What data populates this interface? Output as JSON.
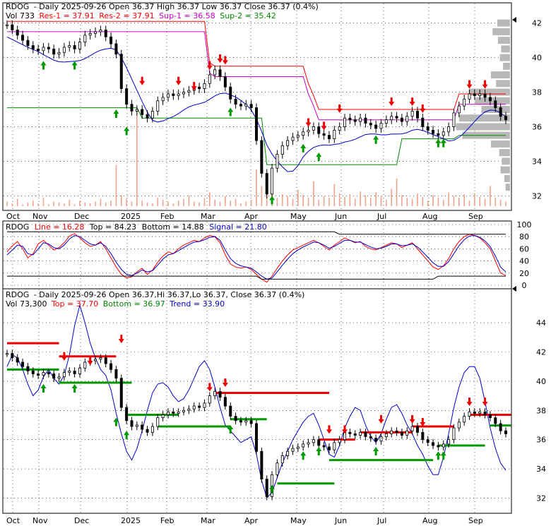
{
  "chart_data": [
    {
      "type": "candlestick",
      "header": {
        "ticker": "RDOG",
        "info": "- Daily 2025-09-26 Open 36.37  High 36.37  Low 36.37  Close 36.37 (0.4%)",
        "vol": "Vol 733",
        "res1": "Res-1 = 37.91",
        "res2": "Res-2 = 37.91",
        "sup1": "Sup-1 = 36.58",
        "sup2": "Sup-2 = 35.42"
      },
      "months": [
        "Oct",
        "Nov",
        "Dec",
        "2025",
        "Feb",
        "Mar",
        "Apr",
        "May",
        "Jun",
        "Jul",
        "Aug",
        "Sep"
      ],
      "y_ticks": [
        "42",
        "40",
        "38",
        "36",
        "34",
        "32"
      ],
      "ylim": [
        31.4,
        42.6
      ],
      "close": [
        41.9,
        41.6,
        41.3,
        41.0,
        40.7,
        40.5,
        40.4,
        40.6,
        40.5,
        40.2,
        40.3,
        40.6,
        40.7,
        40.5,
        40.9,
        41.3,
        41.4,
        41.5,
        41.6,
        41.2,
        40.8,
        40.2,
        38.2,
        37.3,
        36.9,
        37.0,
        36.7,
        36.5,
        36.9,
        37.5,
        37.7,
        37.9,
        37.8,
        37.9,
        38.0,
        38.1,
        38.3,
        38.2,
        38.5,
        39.0,
        39.3,
        38.9,
        38.3,
        37.6,
        37.3,
        37.2,
        37.3,
        37.1,
        35.2,
        33.3,
        32.1,
        33.6,
        34.4,
        34.9,
        35.2,
        35.4,
        35.5,
        35.7,
        35.8,
        36.0,
        35.6,
        35.5,
        35.3,
        35.8,
        36.0,
        36.5,
        36.4,
        36.3,
        36.5,
        36.2,
        36.1,
        35.9,
        36.2,
        36.4,
        36.6,
        36.5,
        36.3,
        36.6,
        36.9,
        36.5,
        36.0,
        35.8,
        35.6,
        35.5,
        35.7,
        36.0,
        36.8,
        37.2,
        37.6,
        37.9,
        37.8,
        37.9,
        37.7,
        37.5,
        37.1,
        36.6,
        36.4
      ],
      "res_line": [
        42.1,
        42.1,
        42.1,
        42.1,
        42.1,
        42.1,
        42.1,
        42.1,
        42.1,
        42.1,
        42.1,
        42.1,
        42.1,
        42.1,
        42.1,
        42.1,
        42.1,
        42.1,
        42.1,
        42.1,
        42.1,
        42.1,
        42.1,
        42.1,
        42.1,
        42.1,
        42.1,
        42.1,
        42.1,
        42.1,
        42.1,
        42.1,
        42.1,
        42.1,
        42.1,
        42.1,
        42.1,
        42.1,
        42.1,
        39.7,
        39.5,
        39.5,
        39.5,
        39.5,
        39.5,
        39.5,
        39.5,
        39.5,
        39.5,
        39.5,
        39.5,
        39.5,
        39.5,
        39.5,
        39.5,
        39.5,
        39.5,
        39.5,
        38.5,
        37.8,
        37.0,
        37.0,
        37.0,
        37.0,
        37.0,
        37.0,
        37.0,
        37.0,
        37.0,
        37.0,
        37.0,
        37.0,
        37.0,
        37.0,
        37.0,
        37.0,
        37.0,
        37.0,
        37.0,
        37.0,
        37.0,
        37.0,
        37.0,
        37.0,
        37.0,
        37.0,
        37.0,
        37.9,
        37.9,
        37.9,
        37.9,
        37.9,
        37.9,
        37.9,
        37.9,
        37.9,
        37.9
      ],
      "sup_line": [
        37.1,
        37.1,
        37.1,
        37.1,
        37.1,
        37.1,
        37.1,
        37.1,
        37.1,
        37.1,
        37.1,
        37.1,
        37.1,
        37.1,
        37.1,
        37.1,
        37.1,
        37.1,
        37.1,
        37.1,
        37.1,
        37.1,
        37.1,
        37.1,
        37.1,
        37.1,
        36.5,
        36.5,
        36.5,
        36.5,
        36.5,
        36.5,
        36.5,
        36.5,
        36.5,
        36.5,
        36.5,
        36.5,
        36.5,
        36.5,
        36.5,
        36.5,
        36.5,
        36.5,
        36.5,
        36.5,
        36.5,
        36.5,
        36.5,
        36.5,
        33.8,
        33.8,
        33.8,
        33.8,
        33.8,
        33.8,
        33.8,
        33.8,
        33.8,
        33.8,
        33.8,
        33.8,
        33.8,
        33.8,
        33.8,
        33.8,
        33.8,
        33.8,
        33.8,
        33.8,
        33.8,
        33.8,
        33.8,
        33.8,
        33.8,
        33.8,
        35.3,
        35.3,
        35.3,
        35.3,
        35.3,
        35.3,
        35.3,
        35.3,
        35.3,
        35.3,
        35.3,
        35.5,
        35.5,
        35.5,
        35.5,
        35.5,
        35.5,
        35.5,
        35.5,
        35.5,
        35.5
      ],
      "volume": [
        5,
        3,
        8,
        2,
        4,
        6,
        3,
        9,
        2,
        5,
        4,
        3,
        7,
        2,
        6,
        4,
        3,
        5,
        8,
        4,
        6,
        45,
        12,
        8,
        5,
        100,
        6,
        4,
        3,
        9,
        7,
        5,
        3,
        6,
        8,
        12,
        5,
        4,
        9,
        15,
        7,
        5,
        11,
        6,
        8,
        3,
        5,
        7,
        40,
        22,
        30,
        15,
        9,
        13,
        11,
        8,
        18,
        12,
        9,
        27,
        7,
        11,
        9,
        24,
        14,
        10,
        13,
        8,
        16,
        12,
        9,
        15,
        11,
        7,
        19,
        30,
        12,
        9,
        8,
        14,
        10,
        6,
        12,
        9,
        7,
        15,
        11,
        9,
        13,
        6,
        14,
        10,
        8,
        22,
        9,
        7,
        5
      ],
      "down_arrows": [
        [
          26,
          38.4
        ],
        [
          33,
          38.4
        ],
        [
          36,
          38.1
        ],
        [
          39,
          39.3
        ],
        [
          41,
          39.7
        ],
        [
          42,
          39.6
        ],
        [
          58,
          36.0
        ],
        [
          61,
          35.8
        ],
        [
          64,
          36.8
        ],
        [
          74,
          37.2
        ],
        [
          78,
          37.2
        ],
        [
          80,
          36.8
        ],
        [
          89,
          38.2
        ],
        [
          92,
          38.2
        ]
      ],
      "up_arrows": [
        [
          7,
          39.8
        ],
        [
          13,
          39.8
        ],
        [
          21,
          37.0
        ],
        [
          23,
          36.0
        ],
        [
          43,
          37.1
        ],
        [
          51,
          32.0
        ],
        [
          57,
          35.0
        ],
        [
          60,
          34.5
        ],
        [
          71,
          35.5
        ],
        [
          83,
          35.3
        ],
        [
          84,
          35.3
        ]
      ],
      "volume_profile": "right"
    },
    {
      "type": "line",
      "header": {
        "ticker": "RDOG",
        "line": "Line = 16.28",
        "top": "Top = 84.23",
        "bottom": "Bottom = 14.88",
        "signal": "Signal = 21.80"
      },
      "y_ticks": [
        "100",
        "80",
        "60",
        "40",
        "20",
        "0"
      ],
      "ylim": [
        0,
        100
      ],
      "series": [
        {
          "name": "Line",
          "color": "#ff0000",
          "values": [
            55,
            65,
            72,
            60,
            45,
            52,
            68,
            74,
            66,
            58,
            62,
            70,
            81,
            85,
            78,
            70,
            64,
            66,
            72,
            60,
            45,
            30,
            18,
            12,
            14,
            22,
            28,
            18,
            25,
            38,
            48,
            55,
            52,
            60,
            66,
            70,
            74,
            72,
            78,
            82,
            80,
            70,
            50,
            35,
            30,
            28,
            30,
            26,
            18,
            10,
            5,
            15,
            28,
            40,
            50,
            58,
            62,
            66,
            70,
            74,
            70,
            64,
            58,
            66,
            72,
            78,
            74,
            70,
            72,
            64,
            60,
            58,
            62,
            66,
            70,
            68,
            62,
            66,
            70,
            60,
            50,
            40,
            30,
            26,
            32,
            44,
            60,
            72,
            80,
            84,
            82,
            78,
            70,
            60,
            40,
            20,
            16
          ]
        },
        {
          "name": "Signal",
          "color": "#0000cc",
          "values": [
            50,
            58,
            66,
            64,
            52,
            50,
            60,
            70,
            68,
            62,
            60,
            66,
            76,
            82,
            80,
            74,
            68,
            66,
            70,
            64,
            52,
            38,
            26,
            18,
            16,
            20,
            25,
            22,
            24,
            33,
            43,
            50,
            52,
            57,
            62,
            67,
            71,
            72,
            75,
            79,
            80,
            74,
            58,
            44,
            36,
            32,
            30,
            28,
            22,
            15,
            10,
            12,
            22,
            33,
            43,
            52,
            58,
            63,
            67,
            71,
            70,
            66,
            61,
            64,
            69,
            74,
            74,
            71,
            71,
            67,
            63,
            60,
            61,
            64,
            68,
            68,
            65,
            66,
            68,
            63,
            55,
            46,
            37,
            31,
            31,
            39,
            52,
            65,
            75,
            81,
            82,
            79,
            73,
            64,
            48,
            30,
            22
          ]
        },
        {
          "name": "Top",
          "color": "#000000",
          "values": [
            88,
            88,
            88,
            88,
            88,
            88,
            88,
            88,
            88,
            88,
            88,
            88,
            88,
            88,
            88,
            88,
            88,
            88,
            88,
            88,
            88,
            88,
            88,
            88,
            88,
            88,
            88,
            88,
            88,
            88,
            88,
            88,
            88,
            88,
            88,
            88,
            88,
            88,
            88,
            88,
            88,
            88,
            88,
            88,
            88,
            88,
            88,
            88,
            88,
            88,
            88,
            88,
            88,
            88,
            88,
            88,
            88,
            88,
            88,
            88,
            88,
            88,
            88,
            88,
            84,
            84,
            84,
            84,
            84,
            84,
            84,
            84,
            84,
            84,
            84,
            84,
            84,
            84,
            84,
            84,
            84,
            84,
            84,
            84,
            84,
            84,
            84,
            84,
            84,
            84,
            84,
            84,
            84,
            84,
            84,
            84,
            84
          ]
        },
        {
          "name": "Bottom",
          "color": "#000000",
          "values": [
            15,
            15,
            15,
            15,
            15,
            15,
            15,
            15,
            15,
            15,
            15,
            15,
            15,
            15,
            15,
            15,
            15,
            15,
            15,
            15,
            15,
            15,
            15,
            15,
            15,
            15,
            15,
            15,
            15,
            15,
            15,
            15,
            15,
            15,
            15,
            15,
            15,
            15,
            15,
            15,
            15,
            15,
            15,
            15,
            15,
            15,
            15,
            15,
            15,
            10,
            10,
            10,
            10,
            10,
            10,
            10,
            10,
            10,
            10,
            10,
            10,
            10,
            10,
            10,
            10,
            10,
            10,
            10,
            10,
            10,
            10,
            10,
            10,
            10,
            10,
            10,
            10,
            10,
            10,
            10,
            10,
            10,
            10,
            15,
            15,
            15,
            15,
            15,
            15,
            15,
            15,
            15,
            15,
            15,
            15,
            15,
            15
          ]
        }
      ]
    },
    {
      "type": "line",
      "header": {
        "ticker": "RDOG",
        "info": "- Daily 2025-09-26 Open 36.37,Hi 36.37,Lo 36.37, Close 36.37 (0.4%)",
        "vol": "Vol 73,300",
        "top": "Top = 37.70",
        "bottom": "Bottom = 36.97",
        "trend": "Trend = 33.90"
      },
      "months": [
        "Oct",
        "Nov",
        "Dec",
        "2025",
        "Feb",
        "Mar",
        "Apr",
        "May",
        "Jun",
        "Jul",
        "Aug",
        "Sep"
      ],
      "y_ticks": [
        "44",
        "42",
        "40",
        "38",
        "36",
        "34",
        "32"
      ],
      "ylim": [
        31.2,
        45.6
      ],
      "trend": [
        41,
        41.8,
        41.6,
        40.8,
        39.8,
        39.0,
        39.4,
        40.3,
        40.8,
        40.2,
        39.8,
        40.4,
        41.8,
        43.8,
        45.2,
        44.0,
        42.6,
        41.6,
        40.8,
        40.4,
        39.4,
        37.8,
        36.4,
        35.2,
        34.6,
        35.4,
        36.6,
        38.0,
        39.2,
        39.8,
        39.9,
        39.6,
        39.0,
        38.6,
        38.8,
        39.4,
        40.2,
        41.0,
        41.4,
        40.8,
        39.6,
        38.2,
        37.0,
        36.6,
        36.2,
        35.8,
        36.0,
        36.2,
        35.0,
        33.2,
        32.0,
        32.4,
        33.4,
        34.4,
        35.2,
        36.0,
        36.6,
        37.2,
        37.6,
        37.8,
        37.0,
        36.0,
        35.0,
        34.8,
        35.6,
        36.8,
        37.6,
        38.2,
        38.0,
        37.0,
        36.2,
        35.8,
        36.4,
        37.4,
        38.2,
        38.4,
        37.8,
        37.0,
        36.4,
        35.6,
        35.0,
        34.2,
        33.6,
        33.6,
        34.8,
        36.4,
        38.2,
        39.6,
        40.6,
        41.0,
        41.0,
        40.2,
        38.6,
        36.8,
        35.4,
        34.4,
        33.9
      ],
      "top_segments": [
        [
          0,
          10,
          42.6
        ],
        [
          10,
          21,
          41.7
        ],
        [
          40,
          45,
          39.2
        ],
        [
          43,
          62,
          39.2
        ],
        [
          60,
          67,
          36.0
        ],
        [
          68,
          78,
          36.5
        ],
        [
          78,
          86,
          36.9
        ],
        [
          89,
          97,
          37.7
        ]
      ],
      "bottom_segments": [
        [
          0,
          10,
          40.8
        ],
        [
          10,
          24,
          39.9
        ],
        [
          23,
          33,
          37.7
        ],
        [
          29,
          43,
          36.9
        ],
        [
          43,
          50,
          37.4
        ],
        [
          52,
          63,
          33.0
        ],
        [
          62,
          82,
          34.6
        ],
        [
          83,
          92,
          35.6
        ],
        [
          93,
          97,
          36.97
        ]
      ],
      "down_arrows": [
        [
          11,
          41.4
        ],
        [
          16,
          41.1
        ],
        [
          22,
          42.6
        ],
        [
          39,
          39.3
        ],
        [
          42,
          39.6
        ],
        [
          62,
          36.4
        ],
        [
          65,
          36.4
        ],
        [
          72,
          37.1
        ],
        [
          78,
          37.1
        ],
        [
          80,
          36.9
        ],
        [
          89,
          38.3
        ],
        [
          92,
          38.3
        ]
      ],
      "up_arrows": [
        [
          7,
          39.8
        ],
        [
          13,
          39.8
        ],
        [
          21,
          37.5
        ],
        [
          23,
          36.6
        ],
        [
          43,
          37.0
        ],
        [
          51,
          32.9
        ],
        [
          57,
          35.2
        ],
        [
          60,
          35.5
        ],
        [
          71,
          35.5
        ],
        [
          83,
          35.2
        ],
        [
          84,
          35.2
        ]
      ],
      "candles_source": "shared"
    }
  ]
}
